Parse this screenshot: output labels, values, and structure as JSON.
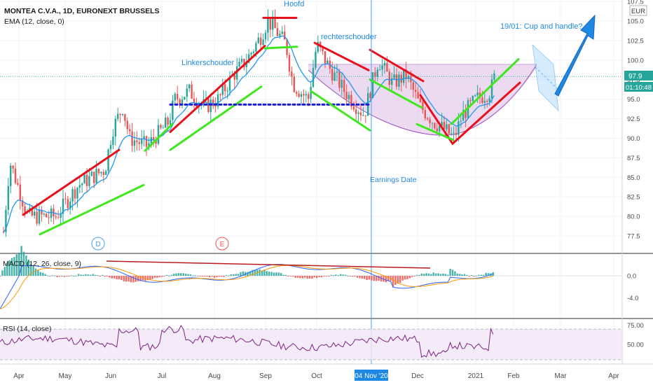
{
  "header": {
    "title": "MONTEA C.V.A., 1D, EURONEXT BRUSSELS",
    "ema_label": "EMA (12, close, 0)",
    "currency": "EUR"
  },
  "price_badges": {
    "last_price": "97.9",
    "countdown": "01:10:48"
  },
  "annotations": {
    "left_shoulder": "Linkerschouder",
    "head": "Hoofd",
    "right_shoulder": "rechterschouder",
    "cup_handle": "19/01: Cup and handle?",
    "earnings": "Earnings Date",
    "dividend_marker": "D",
    "earnings_marker": "E"
  },
  "panels": {
    "macd_label": "MACD (12, 26, close, 9)",
    "rsi_label": "RSI (14, close)"
  },
  "x_axis": {
    "labels": [
      "Apr",
      "May",
      "Jun",
      "Jul",
      "Aug",
      "Sep",
      "Oct",
      "Dec",
      "2021",
      "Feb",
      "Mar",
      "Apr"
    ],
    "cursor_label": "04 Nov '20"
  },
  "colors": {
    "bull": "#26a69a",
    "bear": "#ef5350",
    "ema": "#2196f3",
    "trend_red": "#e8101a",
    "trend_green": "#3ee81c",
    "neckline": "#1c1cd0",
    "cup_fill": "#e5cdeb",
    "accent_blue": "#1e88e5",
    "macd_line": "#2962ff",
    "signal_line": "#ff9800",
    "rsi_line": "#7e1f86",
    "rsi_band": "#f1e6f6"
  },
  "chart_data": [
    {
      "type": "candlestick",
      "title": "MONTEA C.V.A., 1D, EURONEXT BRUSSELS",
      "ylabel": "EUR",
      "y_ticks": [
        77.5,
        80.0,
        82.5,
        85.0,
        87.5,
        90.0,
        92.5,
        95.0,
        97.5,
        100.0,
        102.5,
        105.0,
        107.5
      ],
      "ylim": [
        75.5,
        108.3
      ],
      "x": [
        "Apr",
        "May",
        "Jun",
        "Jul",
        "Aug",
        "Sep",
        "Oct",
        "Nov",
        "Dec",
        "2021"
      ],
      "approx_close": [
        83.0,
        80.0,
        87.0,
        89.0,
        97.0,
        103.0,
        97.0,
        93.0,
        93.0,
        97.9
      ],
      "series": [
        {
          "name": "EMA (12, close, 0)",
          "description_free": true
        }
      ],
      "last_price": 97.9,
      "grid": true
    },
    {
      "type": "line",
      "title": "MACD (12, 26, close, 9)",
      "y_ticks": [
        -4.0,
        0.0
      ],
      "ylim": [
        -7.0,
        3.2
      ],
      "series": [
        {
          "name": "MACD"
        },
        {
          "name": "Signal"
        },
        {
          "name": "Histogram"
        }
      ]
    },
    {
      "type": "line",
      "title": "RSI (14, close)",
      "y_ticks": [
        50.0,
        75.0
      ],
      "band": [
        30,
        70
      ],
      "ylim": [
        20,
        80
      ]
    }
  ]
}
